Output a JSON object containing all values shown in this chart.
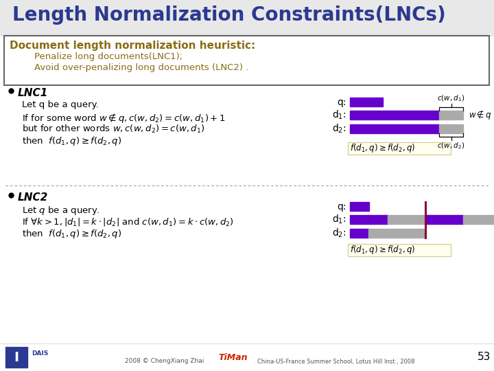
{
  "title": "Length Normalization Constraints(LNCs)",
  "title_color": "#2B3990",
  "title_fontsize": 20,
  "bg_color": "#FFFFFF",
  "box_title": "Document length normalization heuristic:",
  "box_line1": "Penalize long documents(LNC1);",
  "box_line2": "Avoid over-penalizing long documents (LNC2) .",
  "box_title_color": "#8B6B14",
  "box_text_color": "#8B6B14",
  "purple": "#6600CC",
  "gray": "#AAAAAA",
  "footer_text1": "2008 © ChengXiang Zhai",
  "footer_text2": "China-US-France Summer School, Lotus Hill Inst., 2008",
  "footer_num": "53",
  "lnc1_label": "LNC1",
  "lnc2_label": "LNC2",
  "yellow_bg": "#FFFFEE",
  "yellow_edge": "#CCCC88"
}
